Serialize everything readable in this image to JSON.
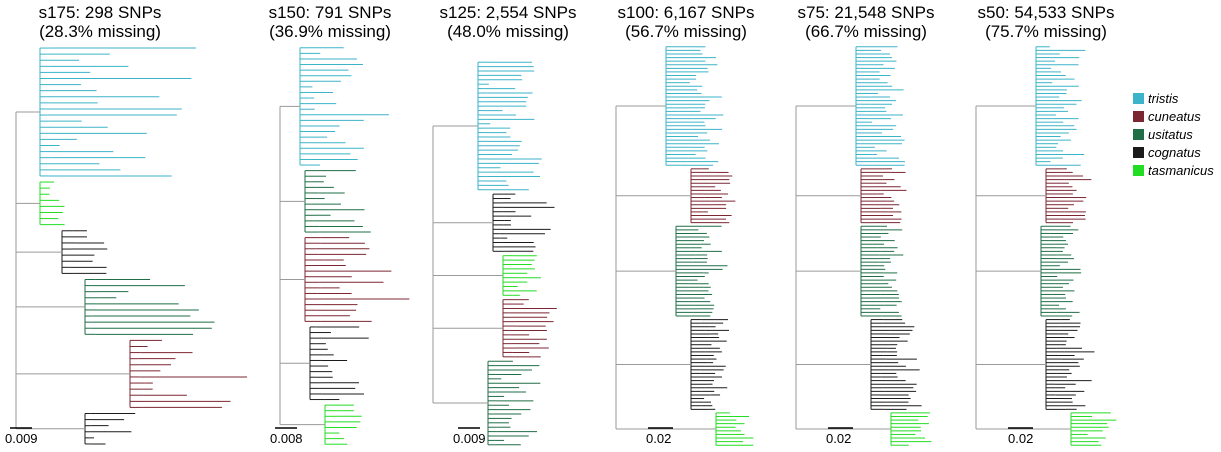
{
  "colors": {
    "tristis": "#3bb3c8",
    "cuneatus": "#7b2631",
    "usitatus": "#1f6e45",
    "cognatus": "#1b1b1b",
    "tasmanicus": "#22dd22",
    "backbone": "#9a9a9a"
  },
  "legend": [
    {
      "label": "tristis",
      "color": "#3bb3c8"
    },
    {
      "label": "cuneatus",
      "color": "#7b2631"
    },
    {
      "label": "usitatus",
      "color": "#1f6e45"
    },
    {
      "label": "cognatus",
      "color": "#1b1b1b"
    },
    {
      "label": "tasmanicus",
      "color": "#22dd22"
    }
  ],
  "panels": [
    {
      "title": "s175: 298 SNPs",
      "subtitle": "(28.3% missing)",
      "scale": "0.009",
      "clades": [
        {
          "name": "tristis",
          "tips": 22,
          "spread": 1.0
        },
        {
          "name": "tasmanicus",
          "tips": 8,
          "spread": 0.25
        },
        {
          "name": "cognatus",
          "tips": 8,
          "spread": 0.5
        },
        {
          "name": "usitatus",
          "tips": 10,
          "spread": 1.0
        },
        {
          "name": "cuneatus",
          "tips": 12,
          "spread": 0.9
        },
        {
          "name": "cognatus",
          "tips": 6,
          "spread": 0.6
        }
      ]
    },
    {
      "title": "s150: 791 SNPs",
      "subtitle": "(36.9% missing)",
      "scale": "0.008",
      "clades": [
        {
          "name": "tristis",
          "tips": 22,
          "spread": 0.7
        },
        {
          "name": "usitatus",
          "tips": 12,
          "spread": 0.6
        },
        {
          "name": "cuneatus",
          "tips": 16,
          "spread": 0.8
        },
        {
          "name": "cognatus",
          "tips": 14,
          "spread": 0.5
        },
        {
          "name": "tasmanicus",
          "tips": 8,
          "spread": 0.3
        }
      ]
    },
    {
      "title": "s125: 2,554 SNPs",
      "subtitle": "(48.0% missing)",
      "scale": "0.009",
      "clades": [
        {
          "name": "tristis",
          "tips": 30,
          "spread": 0.6
        },
        {
          "name": "cognatus",
          "tips": 14,
          "spread": 0.5
        },
        {
          "name": "tasmanicus",
          "tips": 10,
          "spread": 0.3
        },
        {
          "name": "cuneatus",
          "tips": 14,
          "spread": 0.5
        },
        {
          "name": "usitatus",
          "tips": 20,
          "spread": 0.5
        }
      ]
    },
    {
      "title": "s100: 6,167 SNPs",
      "subtitle": "(56.7% missing)",
      "scale": "0.02",
      "clades": [
        {
          "name": "tristis",
          "tips": 34,
          "spread": 0.4
        },
        {
          "name": "cuneatus",
          "tips": 16,
          "spread": 0.35
        },
        {
          "name": "usitatus",
          "tips": 26,
          "spread": 0.35
        },
        {
          "name": "cognatus",
          "tips": 26,
          "spread": 0.4
        },
        {
          "name": "tasmanicus",
          "tips": 10,
          "spread": 0.3
        }
      ]
    },
    {
      "title": "s75: 21,548 SNPs",
      "subtitle": "(66.7% missing)",
      "scale": "0.02",
      "clades": [
        {
          "name": "tristis",
          "tips": 34,
          "spread": 0.4
        },
        {
          "name": "cuneatus",
          "tips": 16,
          "spread": 0.35
        },
        {
          "name": "usitatus",
          "tips": 26,
          "spread": 0.35
        },
        {
          "name": "cognatus",
          "tips": 26,
          "spread": 0.4
        },
        {
          "name": "tasmanicus",
          "tips": 10,
          "spread": 0.3
        }
      ]
    },
    {
      "title": "s50: 54,533 SNPs",
      "subtitle": "(75.7% missing)",
      "scale": "0.02",
      "clades": [
        {
          "name": "tristis",
          "tips": 34,
          "spread": 0.4
        },
        {
          "name": "cuneatus",
          "tips": 16,
          "spread": 0.35
        },
        {
          "name": "usitatus",
          "tips": 26,
          "spread": 0.35
        },
        {
          "name": "cognatus",
          "tips": 26,
          "spread": 0.4
        },
        {
          "name": "tasmanicus",
          "tips": 10,
          "spread": 0.3
        }
      ]
    }
  ]
}
